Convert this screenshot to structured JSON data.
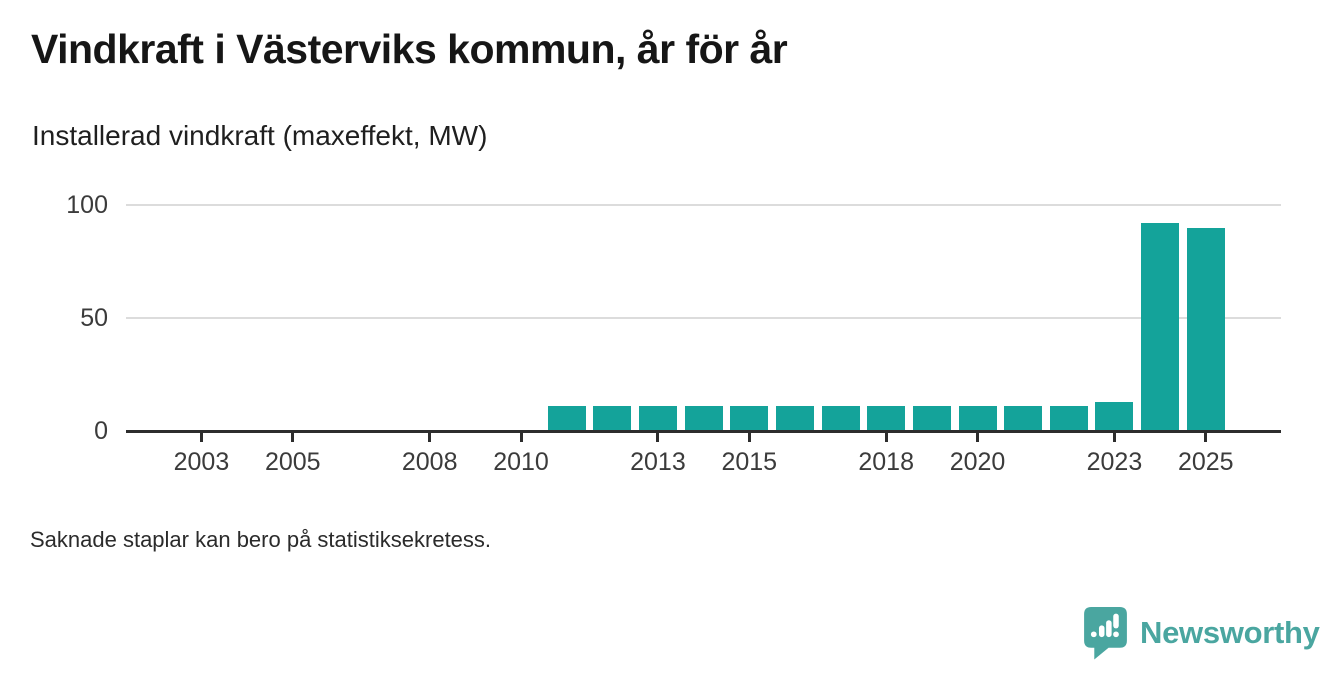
{
  "header": {
    "title": "Vindkraft i Västerviks kommun, år för år",
    "subtitle": "Installerad vindkraft (maxeffekt, MW)"
  },
  "footer": {
    "note": "Saknade staplar kan bero på statistiksekretess."
  },
  "branding": {
    "logo_text": "Newsworthy",
    "logo_icon": "newsworthy-speech-bubble-bar-chart-icon"
  },
  "colors": {
    "bar": "#14a39a",
    "logo": "#4aa6a0",
    "axis": "#2d2d2d",
    "gridline": "#dcdcdc",
    "title_text": "#161616",
    "tick_text": "#3b3b3b"
  },
  "chart_data": {
    "type": "bar",
    "title": "Vindkraft i Västerviks kommun, år för år",
    "subtitle": "Installerad vindkraft (maxeffekt, MW)",
    "unit": "MW",
    "xlabel": "",
    "ylabel": "Installerad vindkraft (maxeffekt, MW)",
    "categories": [
      2011,
      2012,
      2013,
      2014,
      2015,
      2016,
      2017,
      2018,
      2019,
      2020,
      2021,
      2022,
      2023,
      2024,
      2025
    ],
    "values": [
      11,
      11,
      11,
      11,
      11,
      11,
      11,
      11,
      11,
      11,
      11,
      11,
      13,
      92,
      90
    ],
    "ylim": [
      0,
      100
    ],
    "yticks": [
      0,
      50,
      100
    ],
    "xtick_labels": [
      2003,
      2005,
      2008,
      2010,
      2013,
      2015,
      2018,
      2020,
      2023,
      2025
    ],
    "x_axis_range": [
      2001.3,
      2026.7
    ],
    "grid": "horizontal",
    "legend": "none",
    "note": "No bars shown for years before 2011"
  }
}
